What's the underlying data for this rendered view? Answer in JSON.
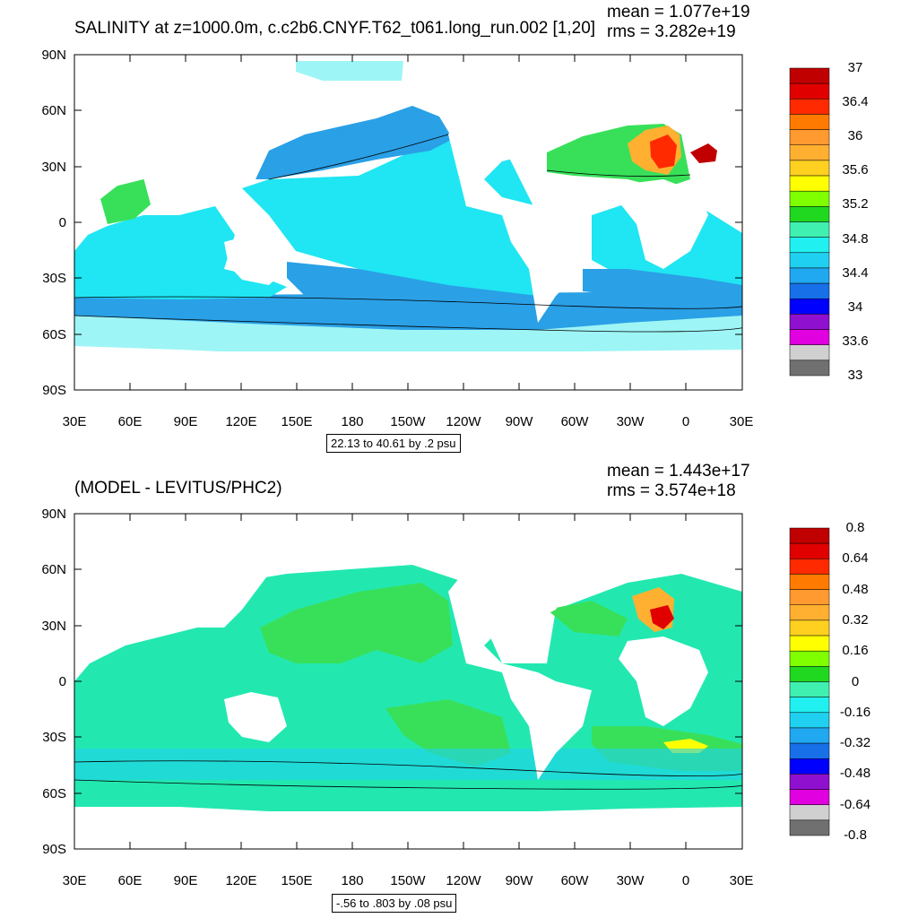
{
  "colors": {
    "ocean_pale": "#9ef5f5",
    "ocean_cyan": "#1fe6f2",
    "ocean_light_blue": "#26c4f5",
    "ocean_mid_blue": "#2aa0e6",
    "ocean_blue": "#1c7ee0",
    "green": "#38e05a",
    "teal_green": "#22e8b0",
    "land": "#ffffff"
  },
  "panel1": {
    "title": "SALINITY at z=1000.0m, c.c2b6.CNYF.T62_t061.long_run.002 [1,20]",
    "mean": "mean = 1.077e+19",
    "rms": "rms = 3.282e+19",
    "contour_note": "22.13 to 40.61 by .2 psu",
    "y_labels": [
      "90N",
      "60N",
      "30N",
      "0",
      "30S",
      "60S",
      "90S"
    ],
    "x_labels": [
      "30E",
      "60E",
      "90E",
      "120E",
      "150E",
      "180",
      "150W",
      "120W",
      "90W",
      "60W",
      "30W",
      "0",
      "30E"
    ],
    "colorbar": {
      "colors": [
        "#c00000",
        "#e00000",
        "#ff2a00",
        "#ff7a00",
        "#ff9a30",
        "#ffb030",
        "#ffd020",
        "#ffff00",
        "#80ff00",
        "#20d820",
        "#40f0b0",
        "#20f0f0",
        "#20d0f0",
        "#20a8f0",
        "#1870e8",
        "#0000ff",
        "#9010d0",
        "#e000e0",
        "#d0d0d0",
        "#707070"
      ],
      "labels": [
        "37",
        "36.4",
        "36",
        "35.6",
        "35.2",
        "34.8",
        "34.4",
        "34",
        "33.6",
        "33"
      ]
    }
  },
  "panel2": {
    "title": "(MODEL - LEVITUS/PHC2)",
    "mean": "mean = 1.443e+17",
    "rms": "rms = 3.574e+18",
    "contour_note": "-.56 to .803 by .08 psu",
    "y_labels": [
      "90N",
      "60N",
      "30N",
      "0",
      "30S",
      "60S",
      "90S"
    ],
    "x_labels": [
      "30E",
      "60E",
      "90E",
      "120E",
      "150E",
      "180",
      "150W",
      "120W",
      "90W",
      "60W",
      "30W",
      "0",
      "30E"
    ],
    "colorbar": {
      "colors": [
        "#c00000",
        "#e00000",
        "#ff2a00",
        "#ff7a00",
        "#ff9a30",
        "#ffb030",
        "#ffd020",
        "#ffff00",
        "#80ff00",
        "#20d820",
        "#40f0b0",
        "#20f0f0",
        "#20d0f0",
        "#20a8f0",
        "#1870e8",
        "#0000ff",
        "#9010d0",
        "#e000e0",
        "#d0d0d0",
        "#707070"
      ],
      "labels": [
        "0.8",
        "0.64",
        "0.48",
        "0.32",
        "0.16",
        "0",
        "-0.16",
        "-0.32",
        "-0.48",
        "-0.64",
        "-0.8"
      ]
    }
  }
}
